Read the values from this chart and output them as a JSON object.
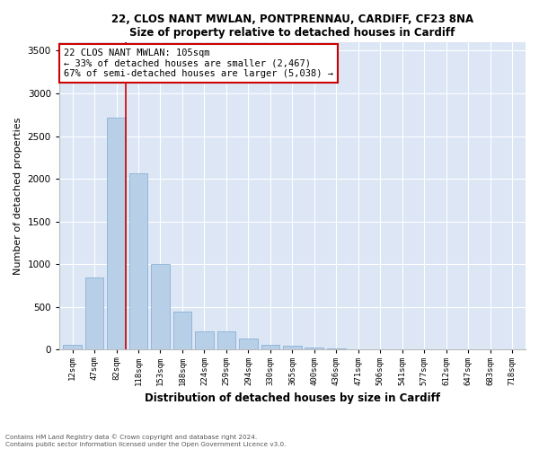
{
  "title1": "22, CLOS NANT MWLAN, PONTPRENNAU, CARDIFF, CF23 8NA",
  "title2": "Size of property relative to detached houses in Cardiff",
  "xlabel": "Distribution of detached houses by size in Cardiff",
  "ylabel": "Number of detached properties",
  "categories": [
    "12sqm",
    "47sqm",
    "82sqm",
    "118sqm",
    "153sqm",
    "188sqm",
    "224sqm",
    "259sqm",
    "294sqm",
    "330sqm",
    "365sqm",
    "400sqm",
    "436sqm",
    "471sqm",
    "506sqm",
    "541sqm",
    "577sqm",
    "612sqm",
    "647sqm",
    "683sqm",
    "718sqm"
  ],
  "values": [
    55,
    850,
    2720,
    2060,
    1000,
    450,
    220,
    215,
    130,
    60,
    50,
    30,
    20,
    10,
    2,
    2,
    2,
    2,
    0,
    0,
    0
  ],
  "bar_color": "#b8cfe8",
  "bar_edge_color": "#7aaad0",
  "vline_color": "#cc0000",
  "annotation_text": "22 CLOS NANT MWLAN: 105sqm\n← 33% of detached houses are smaller (2,467)\n67% of semi-detached houses are larger (5,038) →",
  "annotation_box_color": "#ffffff",
  "annotation_box_edge": "#cc0000",
  "ylim": [
    0,
    3600
  ],
  "yticks": [
    0,
    500,
    1000,
    1500,
    2000,
    2500,
    3000,
    3500
  ],
  "bg_color": "#dce6f5",
  "fig_color": "#ffffff",
  "footer1": "Contains HM Land Registry data © Crown copyright and database right 2024.",
  "footer2": "Contains public sector information licensed under the Open Government Licence v3.0."
}
